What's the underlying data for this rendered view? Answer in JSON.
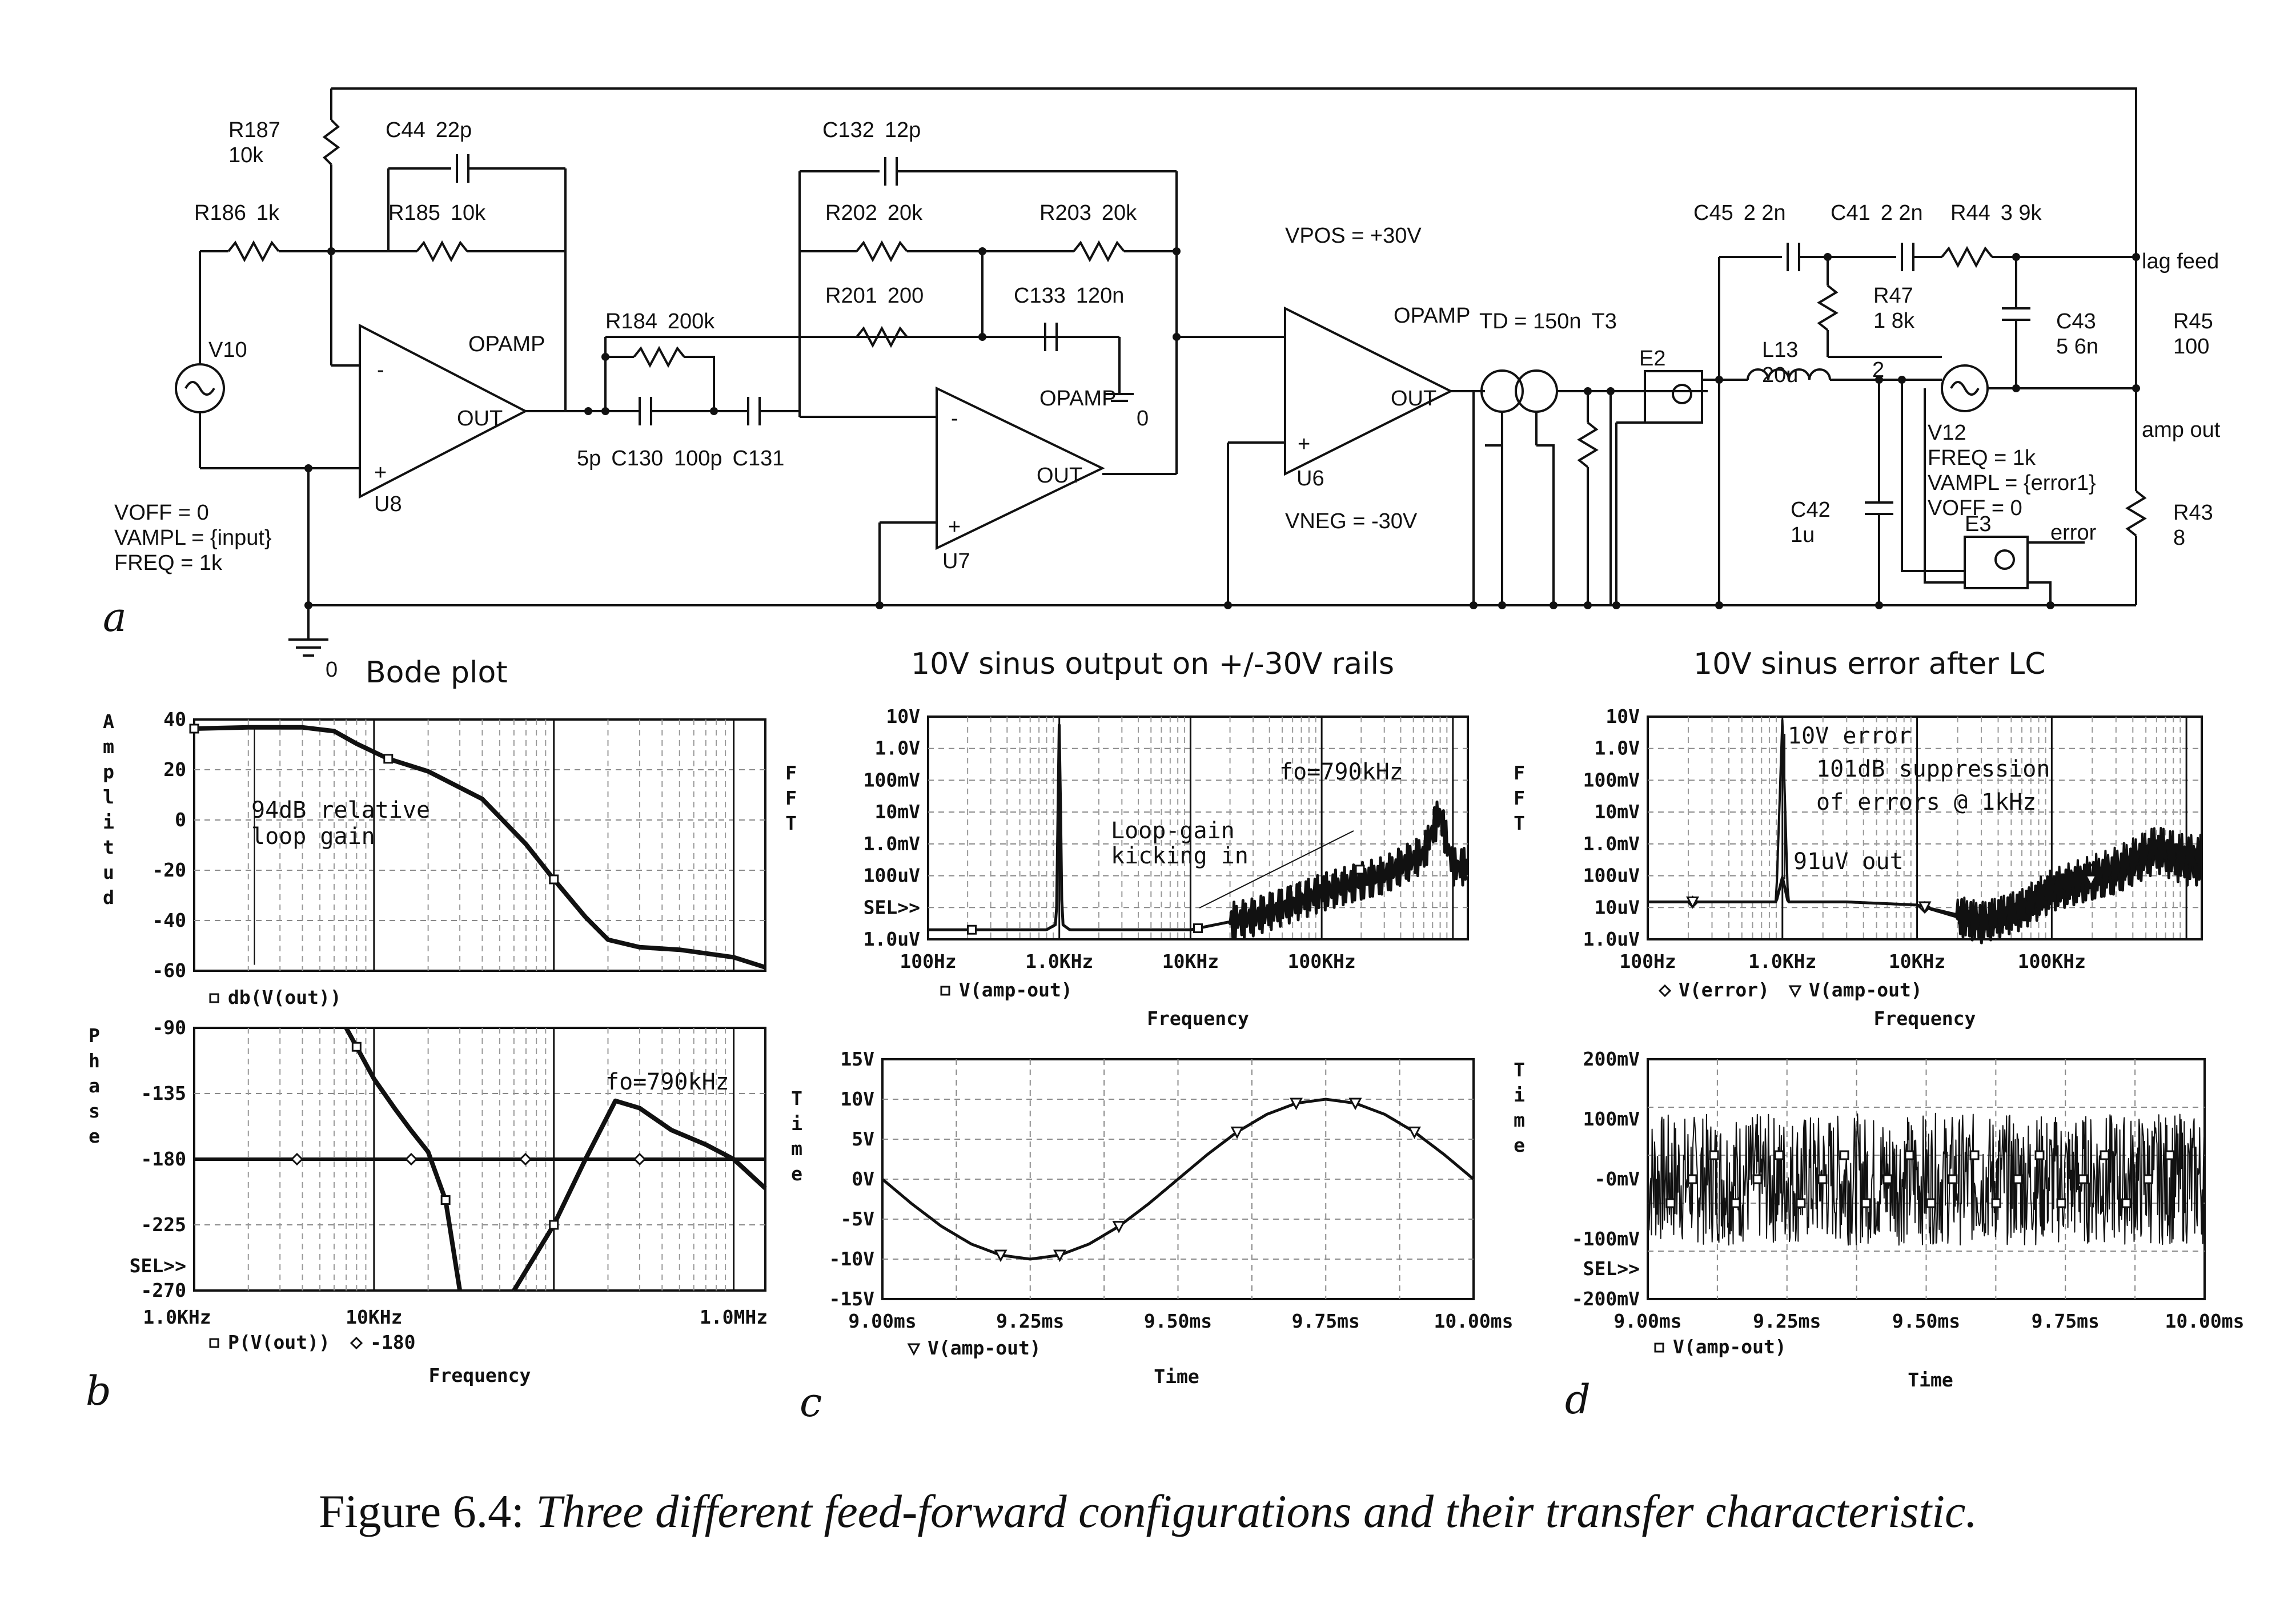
{
  "circuit": {
    "panel_label": "a",
    "components": [
      {
        "id": "src-v10",
        "lines": [
          "V10"
        ]
      },
      {
        "id": "src-v10-params",
        "lines": [
          "VOFF = 0",
          "VAMPL = {input}",
          "FREQ = 1k"
        ]
      },
      {
        "id": "r186",
        "lines": [
          "R186",
          "1k"
        ]
      },
      {
        "id": "r187",
        "lines": [
          "R187",
          "10k"
        ]
      },
      {
        "id": "c44",
        "lines": [
          "C44",
          "22p"
        ]
      },
      {
        "id": "r185",
        "lines": [
          "R185",
          "10k"
        ]
      },
      {
        "id": "u8-type",
        "lines": [
          "OPAMP"
        ]
      },
      {
        "id": "u8",
        "lines": [
          "U8"
        ]
      },
      {
        "id": "c130",
        "lines": [
          "5p",
          "C130"
        ]
      },
      {
        "id": "r184",
        "lines": [
          "R184",
          "200k"
        ]
      },
      {
        "id": "c131",
        "lines": [
          "100p",
          "C131"
        ]
      },
      {
        "id": "c132",
        "lines": [
          "C132",
          "12p"
        ]
      },
      {
        "id": "r202",
        "lines": [
          "R202",
          "20k"
        ]
      },
      {
        "id": "r203",
        "lines": [
          "R203",
          "20k"
        ]
      },
      {
        "id": "r201",
        "lines": [
          "R201",
          "200"
        ]
      },
      {
        "id": "c133",
        "lines": [
          "C133",
          "120n"
        ]
      },
      {
        "id": "u7-type",
        "lines": [
          "OPAMP"
        ]
      },
      {
        "id": "u7",
        "lines": [
          "U7"
        ]
      },
      {
        "id": "gnd-u7",
        "lines": [
          "0"
        ]
      },
      {
        "id": "vpos",
        "lines": [
          "VPOS = +30V"
        ]
      },
      {
        "id": "vneg",
        "lines": [
          "VNEG = -30V"
        ]
      },
      {
        "id": "u6-type",
        "lines": [
          "OPAMP"
        ]
      },
      {
        "id": "u6",
        "lines": [
          "U6"
        ]
      },
      {
        "id": "t3",
        "lines": [
          "TD = 150n",
          "T3"
        ]
      },
      {
        "id": "e2",
        "lines": [
          "E2"
        ]
      },
      {
        "id": "l13",
        "lines": [
          "L13",
          "20u"
        ]
      },
      {
        "id": "c45",
        "lines": [
          "C45",
          "2 2n"
        ]
      },
      {
        "id": "c41",
        "lines": [
          "C41",
          "2 2n"
        ]
      },
      {
        "id": "r44",
        "lines": [
          "R44",
          "3 9k"
        ]
      },
      {
        "id": "r47",
        "lines": [
          "R47",
          "1 8k"
        ]
      },
      {
        "id": "c43",
        "lines": [
          "C43",
          "5 6n"
        ]
      },
      {
        "id": "r45",
        "lines": [
          "R45",
          "100"
        ]
      },
      {
        "id": "net-2",
        "lines": [
          "2"
        ]
      },
      {
        "id": "v12",
        "lines": [
          "V12",
          "FREQ = 1k",
          "VAMPL = {error1}",
          "VOFF = 0"
        ]
      },
      {
        "id": "c42",
        "lines": [
          "C42",
          "1u"
        ]
      },
      {
        "id": "e3",
        "lines": [
          "E3"
        ]
      },
      {
        "id": "r43",
        "lines": [
          "R43",
          "8"
        ]
      },
      {
        "id": "net-lagfeed",
        "lines": [
          "lag feed"
        ]
      },
      {
        "id": "net-ampout",
        "lines": [
          "amp out"
        ]
      },
      {
        "id": "net-error",
        "lines": [
          "error"
        ]
      },
      {
        "id": "gnd-main",
        "lines": [
          "0"
        ]
      }
    ]
  },
  "panels": {
    "b": {
      "label": "b",
      "title": "Bode plot"
    },
    "c": {
      "label": "c",
      "title": "10V sinus output on +/-30V rails"
    },
    "d": {
      "label": "d",
      "title": "10V sinus error after LC"
    }
  },
  "chart_data": [
    {
      "id": "bode-amplitude",
      "type": "line",
      "ylabel": "Amplitud",
      "ylim": [
        -60,
        40
      ],
      "x_scale": "log",
      "x_range_hz": [
        1000,
        1500000
      ],
      "yticks": [
        "40",
        "20",
        "0",
        "-20",
        "-40",
        "-60"
      ],
      "grid": true,
      "legend": "bottom-left",
      "series": [
        {
          "name": "db(V(out))",
          "marker": "square",
          "x": [
            1000,
            2000,
            4000,
            6000,
            8000,
            12000,
            20000,
            40000,
            70000,
            100000,
            150000,
            200000,
            300000,
            500000,
            1000000,
            1500000
          ],
          "y": [
            40,
            40.5,
            40.5,
            39,
            34,
            28,
            23,
            12,
            -6,
            -20,
            -35,
            -44,
            -47,
            -48,
            -51,
            -55
          ]
        }
      ],
      "annotations": [
        "94dB relative",
        "loop gain"
      ]
    },
    {
      "id": "bode-phase",
      "type": "line",
      "ylabel": "Phase",
      "xlabel": "Frequency",
      "ylim": [
        -270,
        -90
      ],
      "x_scale": "log",
      "x_range_hz": [
        1000,
        1500000
      ],
      "yticks": [
        "-90",
        "-135",
        "-180",
        "-225",
        "SEL>>",
        "-270"
      ],
      "xticks": [
        "1.0KHz",
        "10KHz",
        "1.0MHz"
      ],
      "grid": true,
      "legend": "bottom-left",
      "series": [
        {
          "name": "P(V(out))",
          "marker": "square",
          "x": [
            7000,
            8000,
            10000,
            13000,
            16000,
            20000,
            25000,
            30000,
            60000,
            100000,
            150000,
            220000,
            300000,
            450000,
            700000,
            1000000,
            1500000
          ],
          "y": [
            -90,
            -103,
            -125,
            -145,
            -160,
            -175,
            -208,
            -270,
            -270,
            -225,
            -180,
            -140,
            -145,
            -160,
            -170,
            -180,
            -200
          ]
        },
        {
          "name": "-180",
          "marker": "diamond",
          "x": [
            1000,
            1500000
          ],
          "y": [
            -180,
            -180
          ]
        }
      ],
      "annotations": [
        "fo=790kHz"
      ]
    },
    {
      "id": "output-fft",
      "type": "line",
      "ylabel": "FFT",
      "xlabel": "Frequency",
      "y_scale": "log",
      "yticks": [
        "10V",
        "1.0V",
        "100mV",
        "10mV",
        "1.0mV",
        "100uV",
        "SEL>>",
        "1.0uV"
      ],
      "xticks": [
        "100Hz",
        "1.0KHz",
        "10KHz",
        "100KHz"
      ],
      "grid": true,
      "legend": "bottom-left",
      "series": [
        {
          "name": "V(amp-out)",
          "marker": "square",
          "x_hz": [
            100,
            300,
            800,
            950,
            1000,
            1050,
            1200,
            3000,
            10000,
            30000,
            100000,
            300000,
            600000,
            790000,
            1000000
          ],
          "y_volts": [
            2e-06,
            2e-06,
            2e-06,
            3e-06,
            10,
            3e-06,
            2e-06,
            2e-06,
            2e-06,
            5e-06,
            3e-05,
            0.0001,
            0.0005,
            0.01,
            0.0002
          ]
        }
      ],
      "annotations": [
        "fo=790kHz",
        "Loop-gain",
        "kicking in"
      ]
    },
    {
      "id": "output-time",
      "type": "line",
      "ylabel": "Time",
      "xlabel": "Time",
      "xlim_ms": [
        9.0,
        10.0
      ],
      "ylim_v": [
        -15,
        15
      ],
      "yticks": [
        "15V",
        "10V",
        "5V",
        "0V",
        "-5V",
        "-10V",
        "-15V"
      ],
      "xticks": [
        "9.00ms",
        "9.25ms",
        "9.50ms",
        "9.75ms",
        "10.00ms"
      ],
      "grid": true,
      "legend": "bottom-left",
      "series": [
        {
          "name": "V(amp-out)",
          "marker": "triangle",
          "x_ms": [
            9.0,
            9.05,
            9.1,
            9.15,
            9.2,
            9.25,
            9.3,
            9.35,
            9.4,
            9.45,
            9.5,
            9.55,
            9.6,
            9.65,
            9.7,
            9.75,
            9.8,
            9.85,
            9.9,
            9.95,
            10.0
          ],
          "y_v": [
            0,
            -3.1,
            -5.9,
            -8.1,
            -9.5,
            -10,
            -9.5,
            -8.1,
            -5.9,
            -3.1,
            0,
            3.1,
            5.9,
            8.1,
            9.5,
            10,
            9.5,
            8.1,
            5.9,
            3.1,
            0
          ]
        }
      ]
    },
    {
      "id": "error-fft",
      "type": "line",
      "ylabel": "FFT",
      "xlabel": "Frequency",
      "y_scale": "log",
      "yticks": [
        "10V",
        "1.0V",
        "100mV",
        "10mV",
        "1.0mV",
        "100uV",
        "10uV",
        "1.0uV"
      ],
      "xticks": [
        "100Hz",
        "1.0KHz",
        "10KHz",
        "100KHz"
      ],
      "grid": true,
      "legend": "bottom-left",
      "series": [
        {
          "name": "V(error)",
          "marker": "diamond",
          "x_hz": [
            100,
            500,
            900,
            1000,
            1100,
            3000,
            10000,
            30000,
            60000,
            100000,
            300000,
            600000,
            1000000
          ],
          "y_volts": [
            1.5e-05,
            1.5e-05,
            1.5e-05,
            9.1e-05,
            1.5e-05,
            1.5e-05,
            1.2e-05,
            3e-06,
            8e-06,
            3e-05,
            0.0001,
            0.0005,
            0.0002
          ]
        },
        {
          "name": "V(amp-out)",
          "marker": "triangle",
          "x_hz": [
            100,
            500,
            900,
            1000,
            1100,
            3000,
            10000,
            30000,
            60000,
            100000,
            300000,
            600000,
            1000000
          ],
          "y_volts": [
            1.5e-05,
            1.5e-05,
            1.5e-05,
            10,
            1.5e-05,
            1.5e-05,
            1.2e-05,
            4e-06,
            1e-05,
            4e-05,
            0.0002,
            0.001,
            0.0005
          ]
        }
      ],
      "annotations": [
        "10V error",
        "101dB suppression",
        "of errors @ 1kHz",
        "91uV out"
      ]
    },
    {
      "id": "error-time",
      "type": "line",
      "ylabel": "Time",
      "xlabel": "Time",
      "xlim_ms": [
        9.0,
        10.0
      ],
      "ylim_mv": [
        -200,
        200
      ],
      "yticks": [
        "200mV",
        "100mV",
        "-0mV",
        "-100mV",
        "SEL>>",
        "-200mV"
      ],
      "xticks": [
        "9.00ms",
        "9.25ms",
        "9.50ms",
        "9.75ms",
        "10.00ms"
      ],
      "grid": true,
      "legend": "bottom-left",
      "series": [
        {
          "name": "V(amp-out)",
          "marker": "square",
          "noise_band_mv": [
            -110,
            110
          ]
        }
      ]
    }
  ],
  "caption": {
    "number": "Figure 6.4:",
    "text": "Three different feed-forward configurations and their transfer characteristic."
  }
}
